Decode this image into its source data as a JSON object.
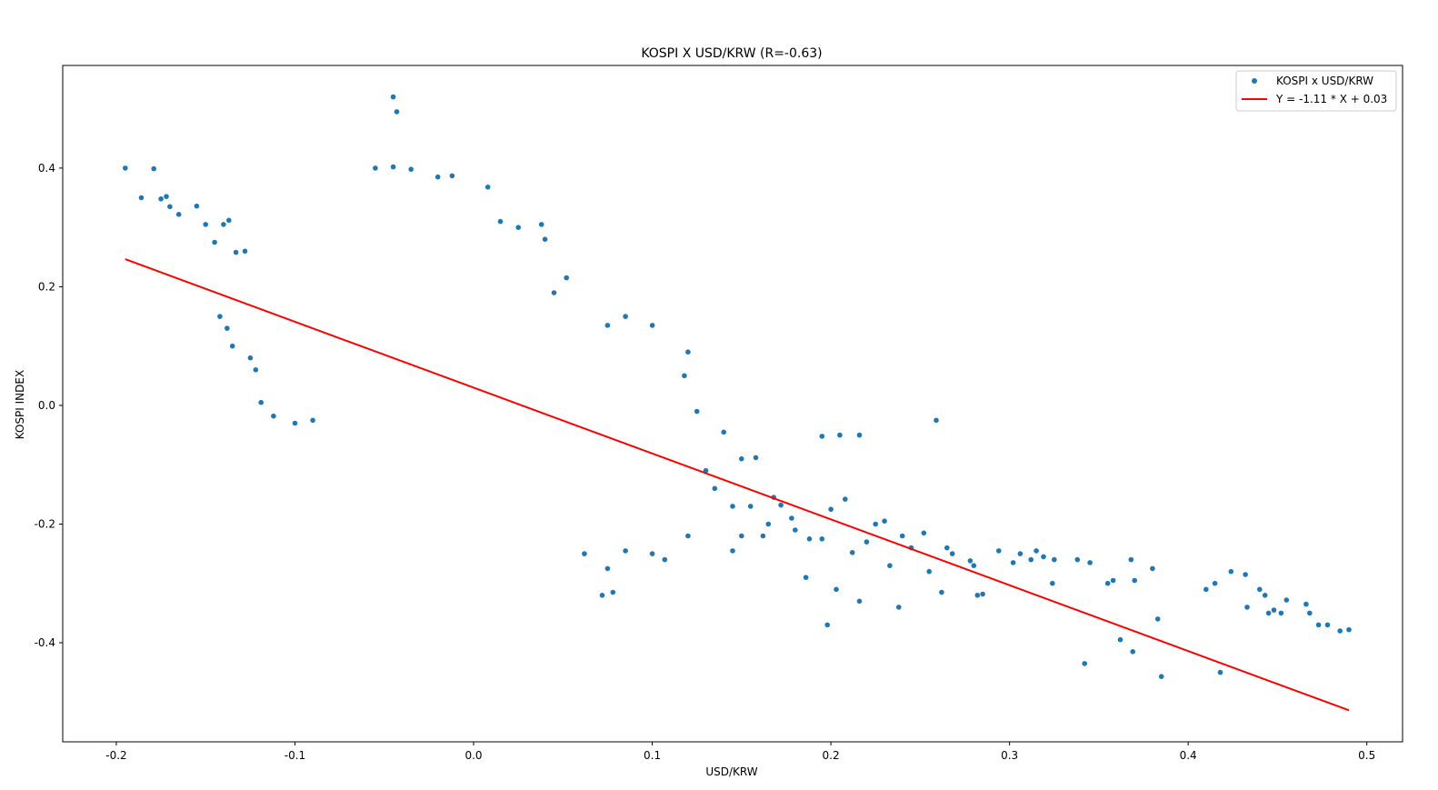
{
  "chart_data": {
    "type": "scatter",
    "title": "KOSPI X USD/KRW (R=-0.63)",
    "xlabel": "USD/KRW",
    "ylabel": "KOSPI INDEX",
    "xlim": [
      -0.23,
      0.52
    ],
    "ylim": [
      -0.567,
      0.573
    ],
    "x_ticks": [
      -0.2,
      -0.1,
      0.0,
      0.1,
      0.2,
      0.3,
      0.4,
      0.5
    ],
    "x_tick_labels": [
      "-0.2",
      "-0.1",
      "0.0",
      "0.1",
      "0.2",
      "0.3",
      "0.4",
      "0.5"
    ],
    "y_ticks": [
      -0.4,
      -0.2,
      0.0,
      0.2,
      0.4
    ],
    "y_tick_labels": [
      "-0.4",
      "-0.2",
      "0.0",
      "0.2",
      "0.4"
    ],
    "grid": false,
    "legend_position": "top-right",
    "series": [
      {
        "name": "KOSPI x USD/KRW",
        "kind": "scatter",
        "color": "#1f77b4",
        "points": [
          [
            -0.195,
            0.4
          ],
          [
            -0.179,
            0.399
          ],
          [
            -0.186,
            0.35
          ],
          [
            -0.175,
            0.348
          ],
          [
            -0.172,
            0.352
          ],
          [
            -0.17,
            0.335
          ],
          [
            -0.165,
            0.322
          ],
          [
            -0.155,
            0.336
          ],
          [
            -0.15,
            0.305
          ],
          [
            -0.145,
            0.275
          ],
          [
            -0.14,
            0.305
          ],
          [
            -0.137,
            0.312
          ],
          [
            -0.133,
            0.258
          ],
          [
            -0.128,
            0.26
          ],
          [
            -0.142,
            0.15
          ],
          [
            -0.138,
            0.13
          ],
          [
            -0.135,
            0.1
          ],
          [
            -0.125,
            0.08
          ],
          [
            -0.122,
            0.06
          ],
          [
            -0.119,
            0.005
          ],
          [
            -0.112,
            -0.018
          ],
          [
            -0.1,
            -0.03
          ],
          [
            -0.09,
            -0.025
          ],
          [
            -0.045,
            0.52
          ],
          [
            -0.043,
            0.495
          ],
          [
            -0.055,
            0.4
          ],
          [
            -0.045,
            0.402
          ],
          [
            -0.035,
            0.398
          ],
          [
            -0.02,
            0.385
          ],
          [
            -0.012,
            0.387
          ],
          [
            0.008,
            0.368
          ],
          [
            0.015,
            0.31
          ],
          [
            0.025,
            0.3
          ],
          [
            0.038,
            0.305
          ],
          [
            0.04,
            0.28
          ],
          [
            0.052,
            0.215
          ],
          [
            0.045,
            0.19
          ],
          [
            0.085,
            0.15
          ],
          [
            0.075,
            0.135
          ],
          [
            0.1,
            0.135
          ],
          [
            0.12,
            0.09
          ],
          [
            0.118,
            0.05
          ],
          [
            0.125,
            -0.01
          ],
          [
            0.14,
            -0.045
          ],
          [
            0.15,
            -0.09
          ],
          [
            0.158,
            -0.088
          ],
          [
            0.13,
            -0.11
          ],
          [
            0.135,
            -0.14
          ],
          [
            0.145,
            -0.17
          ],
          [
            0.155,
            -0.17
          ],
          [
            0.168,
            -0.155
          ],
          [
            0.172,
            -0.168
          ],
          [
            0.165,
            -0.2
          ],
          [
            0.162,
            -0.22
          ],
          [
            0.15,
            -0.22
          ],
          [
            0.145,
            -0.245
          ],
          [
            0.12,
            -0.22
          ],
          [
            0.1,
            -0.25
          ],
          [
            0.107,
            -0.26
          ],
          [
            0.085,
            -0.245
          ],
          [
            0.072,
            -0.32
          ],
          [
            0.078,
            -0.315
          ],
          [
            0.075,
            -0.275
          ],
          [
            0.062,
            -0.25
          ],
          [
            0.178,
            -0.19
          ],
          [
            0.18,
            -0.21
          ],
          [
            0.188,
            -0.225
          ],
          [
            0.186,
            -0.29
          ],
          [
            0.195,
            -0.225
          ],
          [
            0.198,
            -0.37
          ],
          [
            0.2,
            -0.175
          ],
          [
            0.203,
            -0.31
          ],
          [
            0.208,
            -0.158
          ],
          [
            0.212,
            -0.248
          ],
          [
            0.216,
            -0.33
          ],
          [
            0.22,
            -0.23
          ],
          [
            0.225,
            -0.2
          ],
          [
            0.23,
            -0.195
          ],
          [
            0.233,
            -0.27
          ],
          [
            0.238,
            -0.34
          ],
          [
            0.24,
            -0.22
          ],
          [
            0.245,
            -0.24
          ],
          [
            0.252,
            -0.215
          ],
          [
            0.255,
            -0.28
          ],
          [
            0.262,
            -0.315
          ],
          [
            0.265,
            -0.24
          ],
          [
            0.268,
            -0.25
          ],
          [
            0.28,
            -0.27
          ],
          [
            0.282,
            -0.32
          ],
          [
            0.285,
            -0.318
          ],
          [
            0.278,
            -0.262
          ],
          [
            0.195,
            -0.052
          ],
          [
            0.205,
            -0.05
          ],
          [
            0.216,
            -0.05
          ],
          [
            0.259,
            -0.025
          ],
          [
            0.294,
            -0.245
          ],
          [
            0.302,
            -0.265
          ],
          [
            0.306,
            -0.25
          ],
          [
            0.312,
            -0.26
          ],
          [
            0.315,
            -0.245
          ],
          [
            0.319,
            -0.255
          ],
          [
            0.324,
            -0.3
          ],
          [
            0.325,
            -0.26
          ],
          [
            0.338,
            -0.26
          ],
          [
            0.342,
            -0.435
          ],
          [
            0.345,
            -0.265
          ],
          [
            0.355,
            -0.3
          ],
          [
            0.358,
            -0.295
          ],
          [
            0.362,
            -0.395
          ],
          [
            0.368,
            -0.26
          ],
          [
            0.369,
            -0.415
          ],
          [
            0.37,
            -0.295
          ],
          [
            0.38,
            -0.275
          ],
          [
            0.383,
            -0.36
          ],
          [
            0.385,
            -0.457
          ],
          [
            0.41,
            -0.31
          ],
          [
            0.415,
            -0.3
          ],
          [
            0.418,
            -0.45
          ],
          [
            0.424,
            -0.28
          ],
          [
            0.432,
            -0.285
          ],
          [
            0.433,
            -0.34
          ],
          [
            0.44,
            -0.31
          ],
          [
            0.443,
            -0.32
          ],
          [
            0.445,
            -0.35
          ],
          [
            0.448,
            -0.345
          ],
          [
            0.452,
            -0.35
          ],
          [
            0.455,
            -0.328
          ],
          [
            0.466,
            -0.335
          ],
          [
            0.468,
            -0.35
          ],
          [
            0.473,
            -0.37
          ],
          [
            0.478,
            -0.37
          ],
          [
            0.485,
            -0.38
          ],
          [
            0.49,
            -0.378
          ]
        ]
      },
      {
        "name": "Y = -1.11 * X + 0.03",
        "kind": "line",
        "color": "#ff0000",
        "slope": -1.11,
        "intercept": 0.03,
        "x_range": [
          -0.195,
          0.49
        ]
      }
    ]
  }
}
